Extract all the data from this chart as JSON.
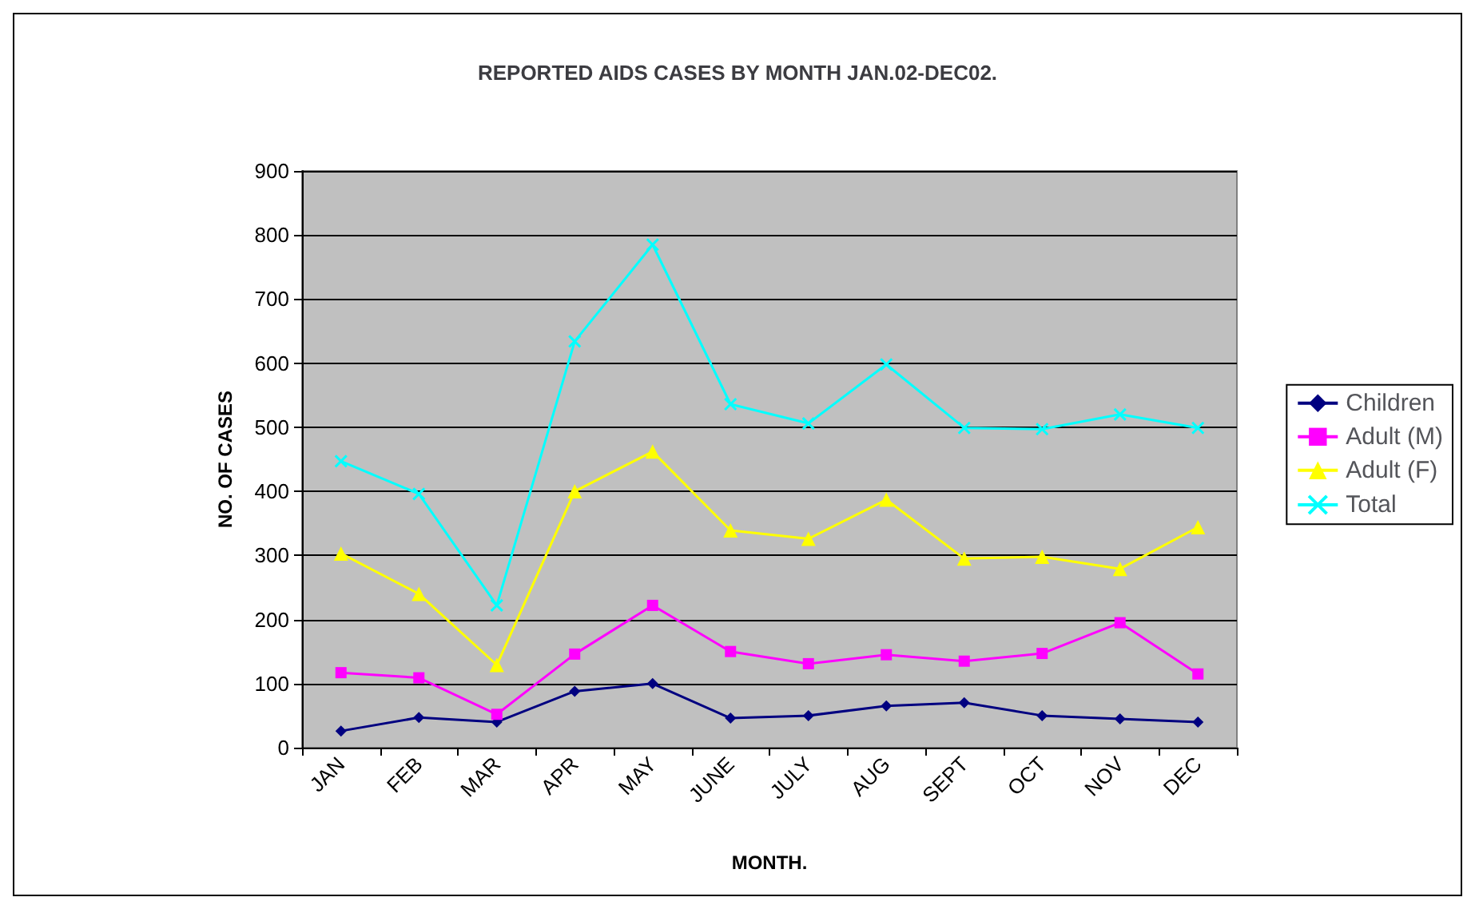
{
  "chart_data": {
    "type": "line",
    "title": "REPORTED AIDS CASES BY MONTH JAN.02-DEC02.",
    "xlabel": "MONTH.",
    "ylabel": "NO. OF CASES",
    "categories": [
      "JAN",
      "FEB",
      "MAR",
      "APR",
      "MAY",
      "JUNE",
      "JULY",
      "AUG",
      "SEPT",
      "OCT",
      "NOV",
      "DEC"
    ],
    "series": [
      {
        "name": "Children",
        "color": "#000080",
        "marker": "diamond",
        "values": [
          26,
          47,
          40,
          88,
          100,
          46,
          50,
          65,
          70,
          50,
          45,
          40
        ]
      },
      {
        "name": "Adult (M)",
        "color": "#ff00ff",
        "marker": "square",
        "values": [
          117,
          109,
          52,
          146,
          222,
          150,
          131,
          145,
          135,
          147,
          195,
          115
        ]
      },
      {
        "name": "Adult (F)",
        "color": "#ffff00",
        "marker": "triangle",
        "values": [
          303,
          240,
          129,
          400,
          462,
          339,
          326,
          387,
          295,
          298,
          279,
          344
        ]
      },
      {
        "name": "Total",
        "color": "#00ffff",
        "marker": "cross",
        "values": [
          447,
          396,
          222,
          634,
          785,
          536,
          506,
          598,
          499,
          497,
          520,
          499
        ]
      }
    ],
    "ylim": [
      0,
      900
    ],
    "yticks": [
      0,
      100,
      200,
      300,
      400,
      500,
      600,
      700,
      800,
      900
    ],
    "grid": "y",
    "legend": "right"
  }
}
